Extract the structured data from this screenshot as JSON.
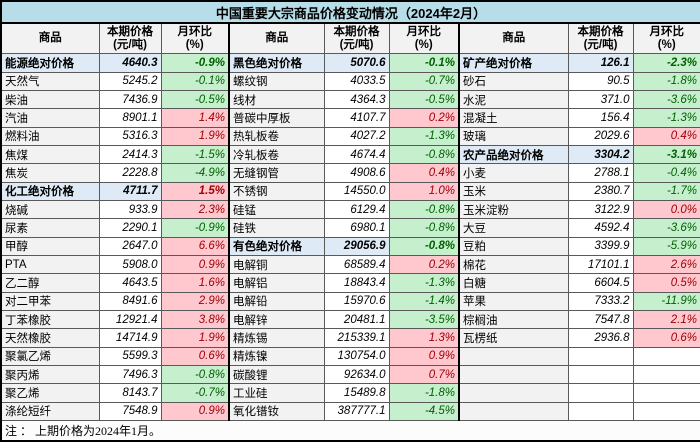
{
  "title": "中国重要大宗商品价格变动情况（2024年2月）",
  "note": "注 ： 上期价格为2024年1月。",
  "header": {
    "commodity": "商品",
    "price": "本期价格\n(元/吨)",
    "pct": "月环比\n(%)"
  },
  "colors": {
    "title_bg": "#B7DEE8",
    "header_bg": "#F2F2F2",
    "category_bg": "#DEEBF7",
    "increase_bg": "#FFC7CE",
    "increase_text": "#9C0006",
    "decrease_bg": "#C6EFCE",
    "decrease_text": "#006100",
    "grid_border": "#595959"
  },
  "chart_data": {
    "type": "table",
    "title": "中国重要大宗商品价格变动情况（2024年2月）",
    "columns": [
      "商品",
      "本期价格(元/吨)",
      "月环比(%)"
    ],
    "note": "注 ： 上期价格为2024年1月。",
    "groups": [
      {
        "rows": [
          {
            "name": "能源绝对价格",
            "price": "4640.3",
            "pct": "-0.9%",
            "kind": "category",
            "trend": "down"
          },
          {
            "name": "天然气",
            "price": "5245.2",
            "pct": "-0.1%",
            "kind": "item",
            "trend": "down"
          },
          {
            "name": "柴油",
            "price": "7436.9",
            "pct": "-0.5%",
            "kind": "item",
            "trend": "down"
          },
          {
            "name": "汽油",
            "price": "8901.1",
            "pct": "1.4%",
            "kind": "item",
            "trend": "up"
          },
          {
            "name": "燃料油",
            "price": "5316.3",
            "pct": "1.9%",
            "kind": "item",
            "trend": "up"
          },
          {
            "name": "焦煤",
            "price": "2414.3",
            "pct": "-1.5%",
            "kind": "item",
            "trend": "down"
          },
          {
            "name": "焦炭",
            "price": "2228.8",
            "pct": "-4.9%",
            "kind": "item",
            "trend": "down"
          },
          {
            "name": "化工绝对价格",
            "price": "4711.7",
            "pct": "1.5%",
            "kind": "category",
            "trend": "up"
          },
          {
            "name": "烧碱",
            "price": "933.9",
            "pct": "2.3%",
            "kind": "item",
            "trend": "up"
          },
          {
            "name": "尿素",
            "price": "2290.1",
            "pct": "-0.9%",
            "kind": "item",
            "trend": "down"
          },
          {
            "name": "甲醇",
            "price": "2647.0",
            "pct": "6.6%",
            "kind": "item",
            "trend": "up"
          },
          {
            "name": "PTA",
            "price": "5908.0",
            "pct": "0.9%",
            "kind": "item",
            "trend": "up"
          },
          {
            "name": "乙二醇",
            "price": "4643.5",
            "pct": "1.6%",
            "kind": "item",
            "trend": "up"
          },
          {
            "name": "对二甲苯",
            "price": "8491.6",
            "pct": "2.9%",
            "kind": "item",
            "trend": "up"
          },
          {
            "name": "丁苯橡胶",
            "price": "12921.4",
            "pct": "3.8%",
            "kind": "item",
            "trend": "up"
          },
          {
            "name": "天然橡胶",
            "price": "14714.9",
            "pct": "1.9%",
            "kind": "item",
            "trend": "up"
          },
          {
            "name": "聚氯乙烯",
            "price": "5599.3",
            "pct": "0.6%",
            "kind": "item",
            "trend": "up"
          },
          {
            "name": "聚丙烯",
            "price": "7496.3",
            "pct": "-0.8%",
            "kind": "item",
            "trend": "down"
          },
          {
            "name": "聚乙烯",
            "price": "8143.7",
            "pct": "-0.7%",
            "kind": "item",
            "trend": "down"
          },
          {
            "name": "涤纶短纤",
            "price": "7548.9",
            "pct": "0.9%",
            "kind": "item",
            "trend": "up"
          }
        ]
      },
      {
        "rows": [
          {
            "name": "黑色绝对价格",
            "price": "5070.6",
            "pct": "-0.1%",
            "kind": "category",
            "trend": "down"
          },
          {
            "name": "螺纹钢",
            "price": "4033.5",
            "pct": "-0.7%",
            "kind": "item",
            "trend": "down"
          },
          {
            "name": "线材",
            "price": "4364.3",
            "pct": "-0.5%",
            "kind": "item",
            "trend": "down"
          },
          {
            "name": "普碳中厚板",
            "price": "4107.7",
            "pct": "0.2%",
            "kind": "item",
            "trend": "up"
          },
          {
            "name": "热轧板卷",
            "price": "4027.2",
            "pct": "-1.3%",
            "kind": "item",
            "trend": "down"
          },
          {
            "name": "冷轧板卷",
            "price": "4674.4",
            "pct": "-0.8%",
            "kind": "item",
            "trend": "down"
          },
          {
            "name": "无缝钢管",
            "price": "4908.6",
            "pct": "0.4%",
            "kind": "item",
            "trend": "up"
          },
          {
            "name": "不锈钢",
            "price": "14550.0",
            "pct": "1.0%",
            "kind": "item",
            "trend": "up"
          },
          {
            "name": "硅锰",
            "price": "6129.4",
            "pct": "-0.8%",
            "kind": "item",
            "trend": "down"
          },
          {
            "name": "硅铁",
            "price": "6980.1",
            "pct": "-0.8%",
            "kind": "item",
            "trend": "down"
          },
          {
            "name": "有色绝对价格",
            "price": "29056.9",
            "pct": "-0.8%",
            "kind": "category",
            "trend": "down"
          },
          {
            "name": "电解铜",
            "price": "68589.4",
            "pct": "0.2%",
            "kind": "item",
            "trend": "up"
          },
          {
            "name": "电解铝",
            "price": "18843.4",
            "pct": "-1.3%",
            "kind": "item",
            "trend": "down"
          },
          {
            "name": "电解铅",
            "price": "15970.6",
            "pct": "-1.4%",
            "kind": "item",
            "trend": "down"
          },
          {
            "name": "电解锌",
            "price": "20481.1",
            "pct": "-3.5%",
            "kind": "item",
            "trend": "down"
          },
          {
            "name": "精炼锡",
            "price": "215339.1",
            "pct": "1.3%",
            "kind": "item",
            "trend": "up"
          },
          {
            "name": "精炼镍",
            "price": "130754.0",
            "pct": "0.9%",
            "kind": "item",
            "trend": "up"
          },
          {
            "name": "碳酸锂",
            "price": "92634.0",
            "pct": "0.7%",
            "kind": "item",
            "trend": "up"
          },
          {
            "name": "工业硅",
            "price": "15489.8",
            "pct": "-1.8%",
            "kind": "item",
            "trend": "down"
          },
          {
            "name": "氧化镨钕",
            "price": "387777.1",
            "pct": "-4.5%",
            "kind": "item",
            "trend": "down"
          }
        ]
      },
      {
        "rows": [
          {
            "name": "矿产绝对价格",
            "price": "126.1",
            "pct": "-2.3%",
            "kind": "category",
            "trend": "down"
          },
          {
            "name": "砂石",
            "price": "90.5",
            "pct": "-1.8%",
            "kind": "item",
            "trend": "down"
          },
          {
            "name": "水泥",
            "price": "371.0",
            "pct": "-3.6%",
            "kind": "item",
            "trend": "down"
          },
          {
            "name": "混凝土",
            "price": "156.4",
            "pct": "-1.3%",
            "kind": "item",
            "trend": "down"
          },
          {
            "name": "玻璃",
            "price": "2029.6",
            "pct": "0.4%",
            "kind": "item",
            "trend": "up"
          },
          {
            "name": "农产品绝对价格",
            "price": "3304.2",
            "pct": "-3.1%",
            "kind": "category",
            "trend": "down"
          },
          {
            "name": "小麦",
            "price": "2788.1",
            "pct": "-0.4%",
            "kind": "item",
            "trend": "down"
          },
          {
            "name": "玉米",
            "price": "2380.7",
            "pct": "-1.7%",
            "kind": "item",
            "trend": "down"
          },
          {
            "name": "玉米淀粉",
            "price": "3122.9",
            "pct": "0.0%",
            "kind": "item",
            "trend": "up"
          },
          {
            "name": "大豆",
            "price": "4592.4",
            "pct": "-3.6%",
            "kind": "item",
            "trend": "down"
          },
          {
            "name": "豆粕",
            "price": "3399.9",
            "pct": "-5.9%",
            "kind": "item",
            "trend": "down"
          },
          {
            "name": "棉花",
            "price": "17101.1",
            "pct": "2.6%",
            "kind": "item",
            "trend": "up"
          },
          {
            "name": "白糖",
            "price": "6604.5",
            "pct": "0.5%",
            "kind": "item",
            "trend": "up"
          },
          {
            "name": "苹果",
            "price": "7333.2",
            "pct": "-11.9%",
            "kind": "item",
            "trend": "down"
          },
          {
            "name": "棕榈油",
            "price": "7547.8",
            "pct": "2.1%",
            "kind": "item",
            "trend": "up"
          },
          {
            "name": "瓦楞纸",
            "price": "2936.8",
            "pct": "0.6%",
            "kind": "item",
            "trend": "up"
          },
          {
            "name": "",
            "price": "",
            "pct": "",
            "kind": "empty",
            "trend": null
          },
          {
            "name": "",
            "price": "",
            "pct": "",
            "kind": "empty",
            "trend": null
          },
          {
            "name": "",
            "price": "",
            "pct": "",
            "kind": "empty",
            "trend": null
          },
          {
            "name": "",
            "price": "",
            "pct": "",
            "kind": "empty",
            "trend": null
          }
        ]
      }
    ]
  }
}
